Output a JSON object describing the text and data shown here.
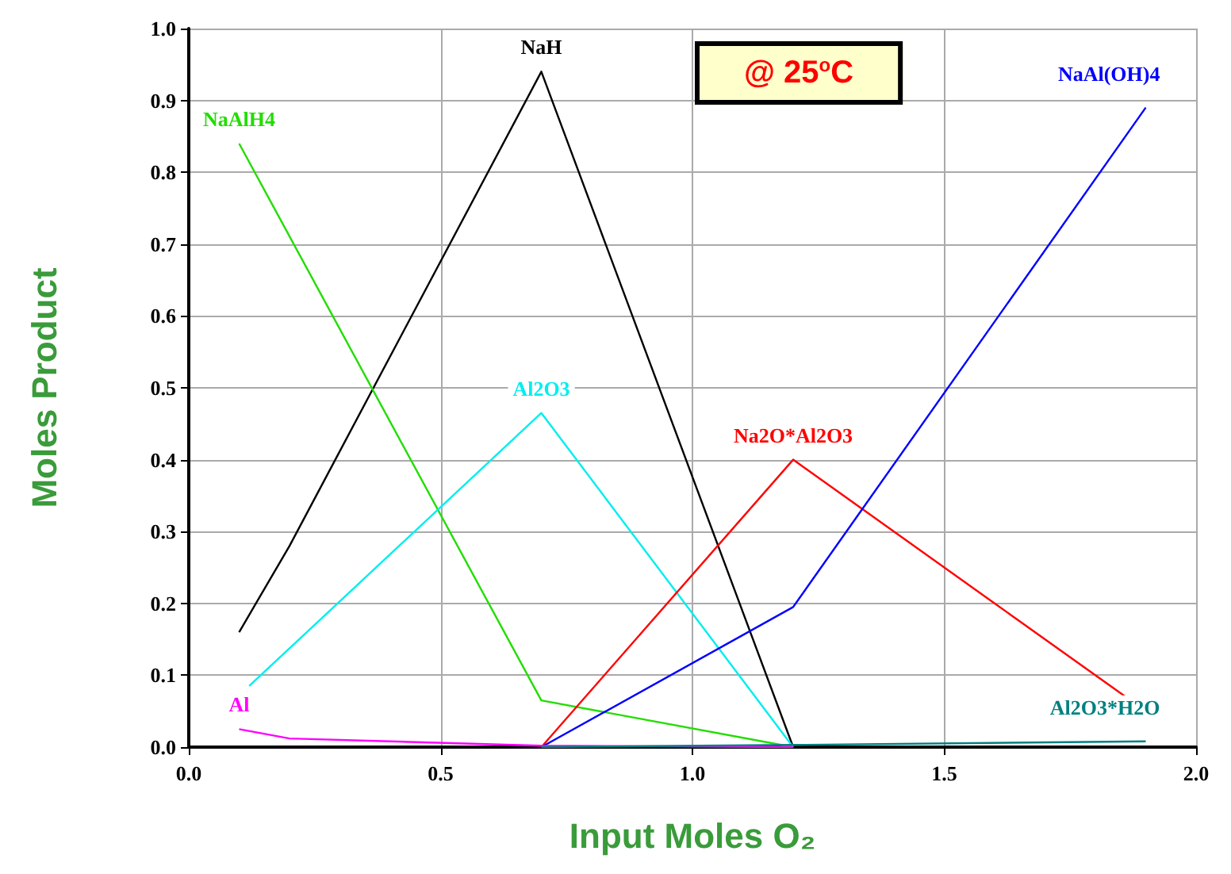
{
  "chart_data": {
    "type": "line",
    "xlabel": "Input Moles O₂",
    "ylabel": "Moles Product",
    "annotations": [
      "@ 25$^{o}$C"
    ],
    "xlim": [
      0,
      2
    ],
    "xticks": [
      {
        "value": 0,
        "label": "0.0"
      },
      {
        "value": 0.5,
        "label": "0.5"
      },
      {
        "value": 1,
        "label": "1.0"
      },
      {
        "value": 1.5,
        "label": "1.5"
      },
      {
        "value": 2,
        "label": "2.0"
      }
    ],
    "ylim": [
      0,
      1
    ],
    "yticks": [
      {
        "value": 0,
        "label": "0.0"
      },
      {
        "value": 0.1,
        "label": "0.1"
      },
      {
        "value": 0.2,
        "label": "0.2"
      },
      {
        "value": 0.3,
        "label": "0.3"
      },
      {
        "value": 0.4,
        "label": "0.4"
      },
      {
        "value": 0.5,
        "label": "0.5"
      },
      {
        "value": 0.6,
        "label": "0.6"
      },
      {
        "value": 0.7,
        "label": "0.7"
      },
      {
        "value": 0.8,
        "label": "0.8"
      },
      {
        "value": 0.9,
        "label": "0.9"
      },
      {
        "value": 1,
        "label": "1.0"
      }
    ],
    "grid": true,
    "legend": false,
    "marker": "none",
    "line_style": "solid",
    "series": [
      {
        "name": "NaH",
        "color": "#000000",
        "x": [
          0.1,
          0.2,
          0.7,
          1.2
        ],
        "values": [
          0.16,
          0.28,
          0.94,
          0
        ]
      },
      {
        "name": "NaAlH4",
        "color": "#22dd00",
        "x": [
          0.1,
          0.7,
          1.2
        ],
        "values": [
          0.84,
          0.065,
          0
        ]
      },
      {
        "name": "Al2O3",
        "color": "#00eeee",
        "x": [
          0.12,
          0.7,
          1.2
        ],
        "values": [
          0.085,
          0.465,
          0
        ]
      },
      {
        "name": "Na2O*Al2O3",
        "color": "#ff0000",
        "x": [
          0.7,
          1.2,
          1.86
        ],
        "values": [
          0,
          0.4,
          0.07
        ]
      },
      {
        "name": "NaAl(OH)4",
        "color": "#0000ff",
        "x": [
          0.7,
          1.2,
          1.9
        ],
        "values": [
          0,
          0.195,
          0.89
        ]
      },
      {
        "name": "Al",
        "color": "#ff00ff",
        "x": [
          0.1,
          0.2,
          0.7,
          1.2
        ],
        "values": [
          0.025,
          0.012,
          0.002,
          0
        ]
      },
      {
        "name": "Al2O3*H2O",
        "color": "#008080",
        "x": [
          0.7,
          1.2,
          1.9
        ],
        "values": [
          0,
          0.003,
          0.008
        ]
      }
    ]
  }
}
